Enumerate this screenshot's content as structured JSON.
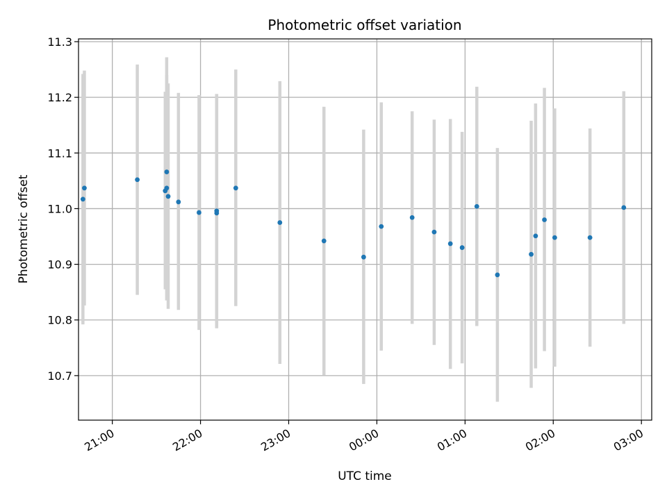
{
  "chart_data": {
    "type": "scatter",
    "title": "Photometric offset variation",
    "xlabel": "UTC time",
    "ylabel": "Photometric offset",
    "grid": true,
    "xlim": [
      "20:37",
      "03:07"
    ],
    "ylim": [
      10.62,
      11.305
    ],
    "xticks": [
      "21:00",
      "22:00",
      "23:00",
      "00:00",
      "01:00",
      "02:00",
      "03:00"
    ],
    "yticks": [
      10.7,
      10.8,
      10.9,
      11.0,
      11.1,
      11.2,
      11.3
    ],
    "colors": {
      "point": "#1f77b4",
      "errorbar": "#d3d3d3",
      "grid": "#b0b0b0"
    },
    "points": [
      {
        "time": "20:40",
        "y": 11.017,
        "low": 10.792,
        "high": 11.242
      },
      {
        "time": "20:41",
        "y": 11.037,
        "low": 10.826,
        "high": 11.248
      },
      {
        "time": "21:17",
        "y": 11.052,
        "low": 10.845,
        "high": 11.259
      },
      {
        "time": "21:36",
        "y": 11.032,
        "low": 10.855,
        "high": 11.21
      },
      {
        "time": "21:37",
        "y": 11.066,
        "low": 10.86,
        "high": 11.272
      },
      {
        "time": "21:37",
        "y": 11.037,
        "low": 10.835,
        "high": 11.24
      },
      {
        "time": "21:38",
        "y": 11.022,
        "low": 10.82,
        "high": 11.225
      },
      {
        "time": "21:45",
        "y": 11.012,
        "low": 10.818,
        "high": 11.208
      },
      {
        "time": "21:59",
        "y": 10.993,
        "low": 10.782,
        "high": 11.204
      },
      {
        "time": "22:11",
        "y": 10.992,
        "low": 10.785,
        "high": 11.206
      },
      {
        "time": "22:11",
        "y": 10.996,
        "low": 10.786,
        "high": 11.206
      },
      {
        "time": "22:24",
        "y": 11.037,
        "low": 10.825,
        "high": 11.25
      },
      {
        "time": "22:54",
        "y": 10.975,
        "low": 10.721,
        "high": 11.229
      },
      {
        "time": "23:24",
        "y": 10.942,
        "low": 10.701,
        "high": 11.183
      },
      {
        "time": "23:51",
        "y": 10.913,
        "low": 10.685,
        "high": 11.142
      },
      {
        "time": "00:03",
        "y": 10.968,
        "low": 10.745,
        "high": 11.191
      },
      {
        "time": "00:24",
        "y": 10.984,
        "low": 10.793,
        "high": 11.175
      },
      {
        "time": "00:39",
        "y": 10.958,
        "low": 10.755,
        "high": 11.16
      },
      {
        "time": "00:50",
        "y": 10.937,
        "low": 10.712,
        "high": 11.161
      },
      {
        "time": "00:58",
        "y": 10.93,
        "low": 10.722,
        "high": 11.138
      },
      {
        "time": "01:08",
        "y": 11.004,
        "low": 10.789,
        "high": 11.219
      },
      {
        "time": "01:22",
        "y": 10.881,
        "low": 10.653,
        "high": 11.109
      },
      {
        "time": "01:45",
        "y": 10.918,
        "low": 10.678,
        "high": 11.158
      },
      {
        "time": "01:48",
        "y": 10.951,
        "low": 10.713,
        "high": 11.189
      },
      {
        "time": "01:54",
        "y": 10.98,
        "low": 10.744,
        "high": 11.217
      },
      {
        "time": "02:01",
        "y": 10.948,
        "low": 10.716,
        "high": 11.18
      },
      {
        "time": "02:25",
        "y": 10.948,
        "low": 10.752,
        "high": 11.144
      },
      {
        "time": "02:48",
        "y": 11.002,
        "low": 10.793,
        "high": 11.211
      }
    ]
  }
}
